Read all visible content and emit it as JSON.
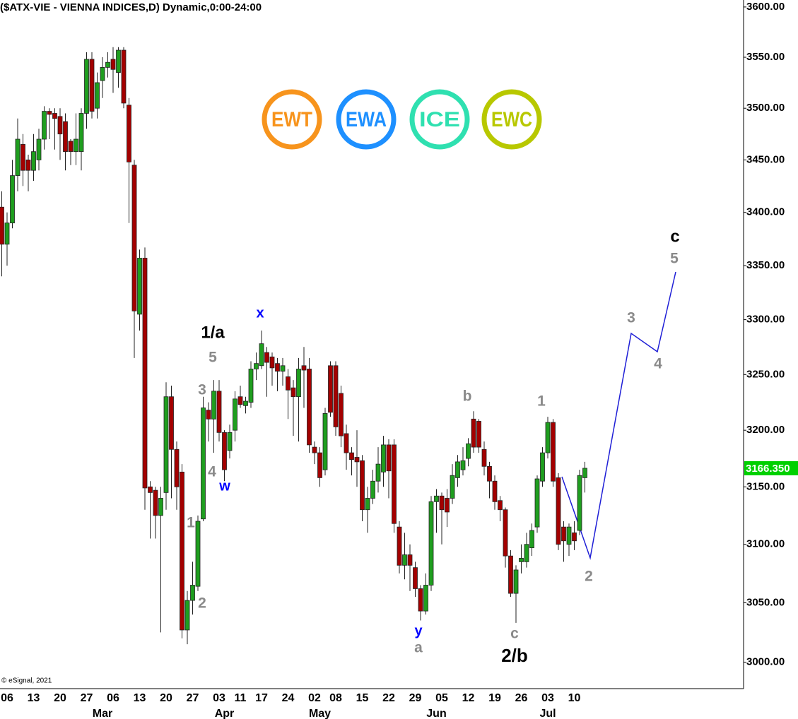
{
  "chart_data": {
    "type": "candlestick",
    "title": "($ATX-VIE - VIENNA INDICES,D) Dynamic,0:00-24:00",
    "copyright": "© eSignal, 2021",
    "log_scale": true,
    "ylim": [
      2978,
      3607
    ],
    "yticks": [
      {
        "value": 3000,
        "label": "3000.00"
      },
      {
        "value": 3050,
        "label": "3050.00"
      },
      {
        "value": 3100,
        "label": "3100.00"
      },
      {
        "value": 3150,
        "label": "3150.00"
      },
      {
        "value": 3200,
        "label": "3200.00"
      },
      {
        "value": 3250,
        "label": "3250.00"
      },
      {
        "value": 3300,
        "label": "3300.00"
      },
      {
        "value": 3350,
        "label": "3350.00"
      },
      {
        "value": 3400,
        "label": "3400.00"
      },
      {
        "value": 3450,
        "label": "3450.00"
      },
      {
        "value": 3500,
        "label": "3500.00"
      },
      {
        "value": 3550,
        "label": "3550.00"
      },
      {
        "value": 3600,
        "label": "3600.00"
      }
    ],
    "up_color": "#1f9e1f",
    "down_color": "#a30000",
    "categories": [
      null,
      "06",
      null,
      null,
      null,
      null,
      "13",
      null,
      null,
      null,
      null,
      "20",
      null,
      null,
      null,
      null,
      "27",
      null,
      null,
      null,
      null,
      "06",
      null,
      null,
      null,
      null,
      "13",
      null,
      null,
      null,
      null,
      "20",
      null,
      null,
      null,
      null,
      "27",
      null,
      null,
      null,
      null,
      "03",
      null,
      null,
      null,
      "11",
      null,
      null,
      null,
      "17",
      null,
      null,
      null,
      null,
      "24",
      null,
      null,
      null,
      null,
      "02",
      null,
      null,
      null,
      "08",
      null,
      null,
      null,
      null,
      "15",
      null,
      null,
      null,
      null,
      "22",
      null,
      null,
      null,
      null,
      "29",
      null,
      null,
      null,
      null,
      "05",
      null,
      null,
      null,
      null,
      "12",
      null,
      null,
      null,
      null,
      "19",
      null,
      null,
      null,
      null,
      "26",
      null,
      null,
      null,
      null,
      "03",
      null,
      null,
      null,
      null,
      "10",
      null,
      null
    ],
    "months": [
      null,
      null,
      null,
      null,
      null,
      null,
      null,
      null,
      null,
      null,
      null,
      null,
      null,
      null,
      null,
      null,
      null,
      null,
      null,
      "Mar",
      null,
      null,
      null,
      null,
      null,
      null,
      null,
      null,
      null,
      null,
      null,
      null,
      null,
      null,
      null,
      null,
      null,
      null,
      null,
      null,
      null,
      null,
      "Apr",
      null,
      null,
      null,
      null,
      null,
      null,
      null,
      null,
      null,
      null,
      null,
      null,
      null,
      null,
      null,
      null,
      null,
      "May",
      null,
      null,
      null,
      null,
      null,
      null,
      null,
      null,
      null,
      null,
      null,
      null,
      null,
      null,
      null,
      null,
      null,
      null,
      null,
      null,
      null,
      "Jun",
      null,
      null,
      null,
      null,
      null,
      null,
      null,
      null,
      null,
      null,
      null,
      null,
      null,
      null,
      null,
      null,
      null,
      null,
      null,
      null,
      "Jul",
      null,
      null,
      null,
      null,
      null,
      null,
      null
    ],
    "open": [
      3405,
      3370,
      3390,
      3435,
      3465,
      3450,
      3440,
      3450,
      3470,
      3497,
      3495,
      3492,
      3487,
      3468,
      3458,
      3458,
      3495,
      3548,
      3500,
      3527,
      3540,
      3548,
      3535,
      3557,
      3503,
      3445,
      3305,
      3357,
      3150,
      3147,
      3125,
      3145,
      3230,
      3183,
      3163,
      3027,
      3052,
      3064,
      3122,
      3218,
      3210,
      3235,
      3198,
      3182,
      3200,
      3230,
      3222,
      3225,
      3255,
      3258,
      3270,
      3266,
      3260,
      3253,
      3248,
      3238,
      3230,
      3258,
      3255,
      3185,
      3180,
      3165,
      3258,
      3258,
      3233,
      3197,
      3180,
      3176,
      3173,
      3130,
      3140,
      3155,
      3163,
      3187,
      3187,
      3115,
      3082,
      3091,
      3080,
      3062,
      3043,
      3065,
      3137,
      3142,
      3140,
      3140,
      3158,
      3165,
      3175,
      3210,
      3208,
      3183,
      3168,
      3155,
      3138,
      3130,
      3090,
      3058,
      3085,
      3085,
      3097,
      3115,
      3155,
      3180,
      3207,
      3158,
      3115,
      3100,
      3110,
      3112,
      3158
    ],
    "high": [
      3420,
      3400,
      3450,
      3490,
      3475,
      3455,
      3475,
      3480,
      3502,
      3500,
      3500,
      3500,
      3495,
      3470,
      3495,
      3500,
      3555,
      3555,
      3535,
      3550,
      3555,
      3560,
      3560,
      3560,
      3510,
      3450,
      3365,
      3367,
      3155,
      3150,
      3150,
      3243,
      3240,
      3190,
      3170,
      3060,
      3085,
      3125,
      3230,
      3225,
      3245,
      3245,
      3200,
      3205,
      3235,
      3240,
      3230,
      3262,
      3270,
      3290,
      3275,
      3270,
      3265,
      3265,
      3255,
      3245,
      3265,
      3275,
      3265,
      3190,
      3185,
      3220,
      3262,
      3262,
      3240,
      3205,
      3185,
      3200,
      3178,
      3150,
      3165,
      3185,
      3195,
      3192,
      3192,
      3120,
      3110,
      3100,
      3085,
      3065,
      3075,
      3142,
      3148,
      3145,
      3148,
      3170,
      3178,
      3185,
      3193,
      3217,
      3210,
      3190,
      3172,
      3160,
      3142,
      3132,
      3095,
      3082,
      3100,
      3110,
      3118,
      3160,
      3185,
      3212,
      3210,
      3162,
      3120,
      3118,
      3120,
      3165,
      3172
    ],
    "low": [
      3340,
      3350,
      3385,
      3420,
      3425,
      3420,
      3430,
      3440,
      3460,
      3470,
      3460,
      3450,
      3440,
      3445,
      3445,
      3440,
      3480,
      3490,
      3490,
      3510,
      3530,
      3515,
      3520,
      3500,
      3390,
      3265,
      3290,
      3130,
      3105,
      3105,
      3025,
      3130,
      3140,
      3130,
      3020,
      3015,
      3040,
      3060,
      3120,
      3190,
      3180,
      3190,
      3155,
      3175,
      3190,
      3220,
      3215,
      3220,
      3245,
      3255,
      3230,
      3240,
      3235,
      3240,
      3210,
      3195,
      3190,
      3220,
      3180,
      3170,
      3150,
      3160,
      3212,
      3195,
      3185,
      3165,
      3160,
      3150,
      3120,
      3110,
      3135,
      3145,
      3150,
      3140,
      3110,
      3075,
      3070,
      3060,
      3055,
      3035,
      3040,
      3060,
      3110,
      3100,
      3115,
      3135,
      3150,
      3160,
      3168,
      3180,
      3180,
      3160,
      3140,
      3130,
      3120,
      3080,
      3055,
      3033,
      3075,
      3080,
      3090,
      3110,
      3150,
      3175,
      3150,
      3095,
      3085,
      3090,
      3095,
      3108,
      3145
    ],
    "close": [
      3370,
      3390,
      3435,
      3470,
      3440,
      3440,
      3458,
      3470,
      3497,
      3494,
      3490,
      3475,
      3458,
      3458,
      3470,
      3495,
      3548,
      3497,
      3525,
      3540,
      3545,
      3538,
      3557,
      3505,
      3448,
      3308,
      3357,
      3149,
      3145,
      3125,
      3140,
      3230,
      3183,
      3150,
      3027,
      3052,
      3065,
      3120,
      3220,
      3210,
      3235,
      3198,
      3165,
      3198,
      3228,
      3223,
      3226,
      3255,
      3260,
      3278,
      3261,
      3256,
      3253,
      3258,
      3236,
      3230,
      3255,
      3254,
      3187,
      3180,
      3158,
      3215,
      3216,
      3203,
      3195,
      3180,
      3174,
      3172,
      3130,
      3140,
      3155,
      3170,
      3187,
      3164,
      3118,
      3082,
      3091,
      3082,
      3062,
      3043,
      3065,
      3137,
      3142,
      3130,
      3128,
      3160,
      3172,
      3173,
      3188,
      3185,
      3185,
      3168,
      3155,
      3137,
      3130,
      3090,
      3058,
      3078,
      3088,
      3100,
      3112,
      3157,
      3180,
      3207,
      3155,
      3100,
      3103,
      3115,
      3103,
      3160,
      3166.35
    ],
    "last_label": "3166.350",
    "logos": [
      {
        "text": "EWT",
        "color": "#f7941d"
      },
      {
        "text": "EWA",
        "color": "#1e90ff"
      },
      {
        "text": "ICE",
        "color": "#2fe0b0"
      },
      {
        "text": "EWC",
        "color": "#b8c800"
      }
    ],
    "annotations": [
      {
        "text": "1/a",
        "color": "#000000"
      },
      {
        "text": "5",
        "color": "#8a8a8a"
      },
      {
        "text": "3",
        "color": "#8a8a8a"
      },
      {
        "text": "4",
        "color": "#8a8a8a"
      },
      {
        "text": "w",
        "color": "#0000ff"
      },
      {
        "text": "x",
        "color": "#0000ff"
      },
      {
        "text": "1",
        "color": "#8a8a8a"
      },
      {
        "text": "2",
        "color": "#8a8a8a"
      },
      {
        "text": "y",
        "color": "#0000ff"
      },
      {
        "text": "a",
        "color": "#8a8a8a"
      },
      {
        "text": "b",
        "color": "#8a8a8a"
      },
      {
        "text": "c",
        "color": "#8a8a8a"
      },
      {
        "text": "2/b",
        "color": "#000000"
      },
      {
        "text": "1",
        "color": "#8a8a8a"
      },
      {
        "text": "2",
        "color": "#8a8a8a"
      },
      {
        "text": "3",
        "color": "#8a8a8a"
      },
      {
        "text": "4",
        "color": "#8a8a8a"
      },
      {
        "text": "5",
        "color": "#8a8a8a"
      },
      {
        "text": "c",
        "color": "#000000"
      }
    ]
  }
}
